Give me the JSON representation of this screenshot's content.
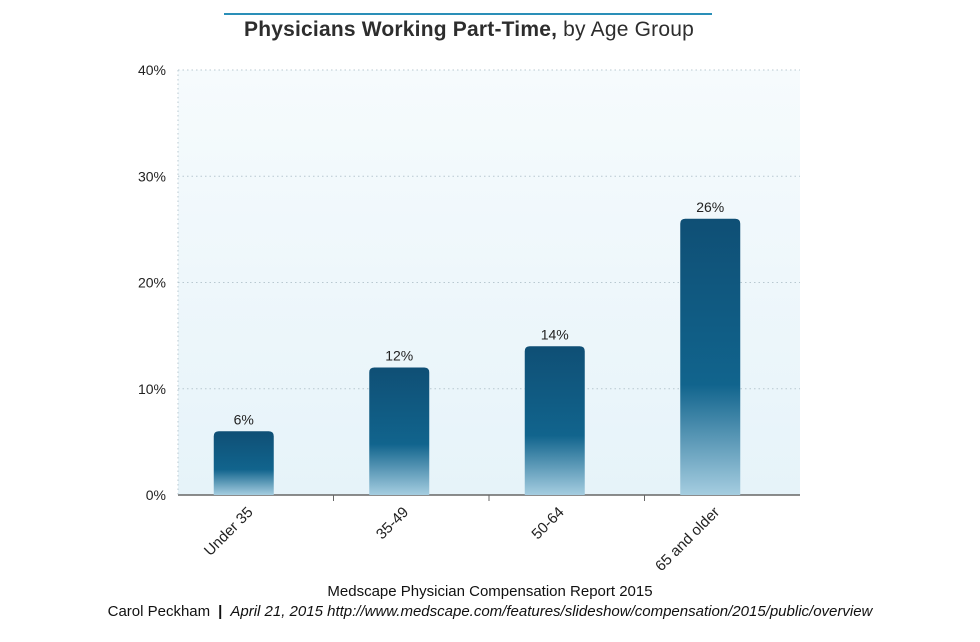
{
  "chart_data": {
    "type": "bar",
    "title_bold": "Physicians Working Part-Time,",
    "title_rest": " by Age Group",
    "categories": [
      "Under 35",
      "35-49",
      "50-64",
      "65 and older"
    ],
    "values": [
      6,
      12,
      14,
      26
    ],
    "value_labels": [
      "6%",
      "12%",
      "14%",
      "26%"
    ],
    "ylim": [
      0,
      40
    ],
    "yticks": [
      0,
      10,
      20,
      30,
      40
    ],
    "ytick_labels": [
      "0%",
      "10%",
      "20%",
      "30%",
      "40%"
    ],
    "xlabel": "",
    "ylabel": "",
    "grid": true,
    "colors": {
      "bar_top": "#0f4f75",
      "bar_mid": "#11648d",
      "bar_bottom": "#a5cde0",
      "plot_bg_top": "#f6fbfd",
      "plot_bg_bottom": "#e6f3f9",
      "grid": "#b8c8d0",
      "axis": "#666666",
      "title_rule": "#2a8fb8"
    }
  },
  "source": {
    "line1": "Medscape Physician Compensation Report 2015",
    "author": "Carol Peckham",
    "separator": "|",
    "date": "April 21, 2015",
    "url": "http://www.medscape.com/features/slideshow/compensation/2015/public/overview"
  }
}
